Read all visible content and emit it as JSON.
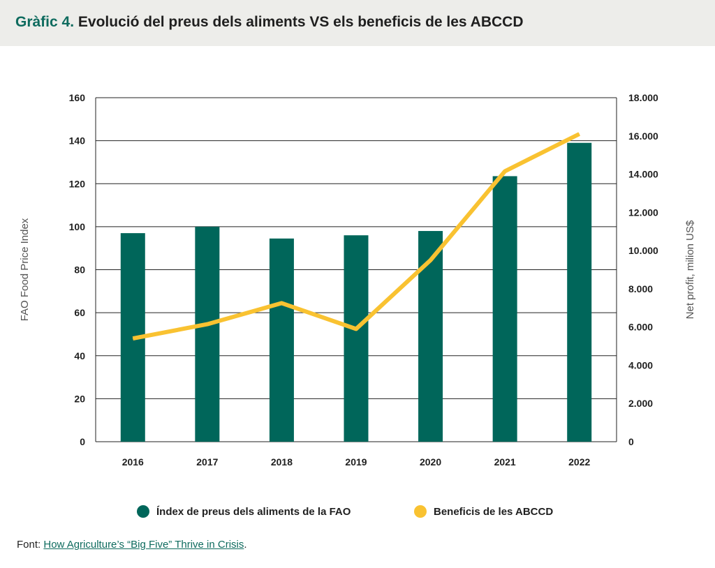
{
  "header": {
    "title_prefix": "Gràfic 4.",
    "title_text": "Evolució del preus dels aliments VS els beneficis de les ABCCD"
  },
  "colors": {
    "bar": "#00665a",
    "line": "#f9c231",
    "header_bg": "#ededea",
    "accent_text": "#0e6b5e"
  },
  "chart_data": {
    "type": "bar",
    "categories": [
      "2016",
      "2017",
      "2018",
      "2019",
      "2020",
      "2021",
      "2022"
    ],
    "series": [
      {
        "name": "Índex de preus dels aliments de la FAO",
        "type": "bar",
        "axis": "left",
        "values": [
          97,
          100,
          94.5,
          96,
          98,
          123.5,
          139
        ]
      },
      {
        "name": "Beneficis de les ABCCD",
        "type": "line",
        "axis": "right",
        "values": [
          5400,
          6150,
          7250,
          5900,
          9500,
          14150,
          16100
        ]
      }
    ],
    "ylabel": "FAO Food Price Index",
    "ylabel_right": "Net profit, milion US$",
    "ylim": [
      0,
      160
    ],
    "ylim_right": [
      0,
      18000
    ],
    "yticks": [
      "0",
      "20",
      "40",
      "60",
      "80",
      "100",
      "120",
      "140",
      "160"
    ],
    "yticks_right": [
      "0",
      "2.000",
      "4.000",
      "6.000",
      "8.000",
      "10.000",
      "12.000",
      "14.000",
      "16.000",
      "18.000"
    ],
    "grid": true,
    "legend": "bottom"
  },
  "legend": {
    "items": [
      {
        "label": "Índex de preus dels aliments de la FAO",
        "color": "#00665a"
      },
      {
        "label": "Beneficis de les ABCCD",
        "color": "#f9c231"
      }
    ]
  },
  "source": {
    "label": "Font:",
    "link_text": "How Agriculture’s “Big Five” Thrive in Crisis",
    "suffix": "."
  }
}
